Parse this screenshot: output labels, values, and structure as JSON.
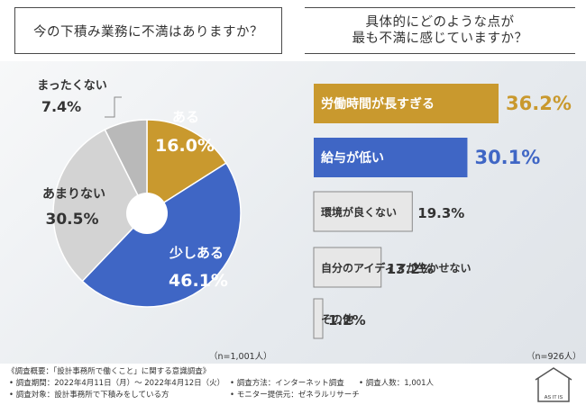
{
  "header": {
    "left_question": "今の下積み業務に不満はありますか？",
    "right_question_line1": "具体的にどのような点が",
    "right_question_line2": "最も不満に感じていますか？"
  },
  "chart_data": [
    {
      "type": "pie",
      "categories": [
        "ある",
        "少しある",
        "あまりない",
        "まったくない"
      ],
      "values": [
        16.0,
        46.1,
        30.5,
        7.4
      ],
      "value_labels": [
        "16.0%",
        "46.1%",
        "30.5%",
        "7.4%"
      ],
      "colors": [
        "#c9992e",
        "#3f66c5",
        "#d3d3d3",
        "#b9b9b9"
      ],
      "donut_hole": true,
      "n_label": "（n=1,001人）"
    },
    {
      "type": "bar",
      "orientation": "horizontal",
      "categories": [
        "労働時間が長すぎる",
        "給与が低い",
        "環境が良くない",
        "自分のアイディアが生かせない",
        "その他"
      ],
      "values": [
        36.2,
        30.1,
        19.3,
        13.2,
        1.2
      ],
      "value_labels": [
        "36.2%",
        "30.1%",
        "19.3%",
        "13.2%",
        "1.2%"
      ],
      "colors": [
        "#c9992e",
        "#3f66c5",
        "#e7e7e7",
        "#e7e7e7",
        "#e7e7e7"
      ],
      "n_label": "（n=926人）"
    }
  ],
  "footer": {
    "overview": "《調査概要：「設計事務所で働くこと」に関する意識調査》",
    "period": "• 調査期間：2022年4月11日（月）～ 2022年4月12日（火）",
    "method": "• 調査方法：インターネット調査",
    "count": "• 調査人数：1,001人",
    "target": "• 調査対象：設計事務所で下積みをしている方",
    "provider": "• モニター提供元：ゼネラルリサーチ"
  },
  "logo": {
    "text": "AS IT IS",
    "icon": "house-icon"
  }
}
